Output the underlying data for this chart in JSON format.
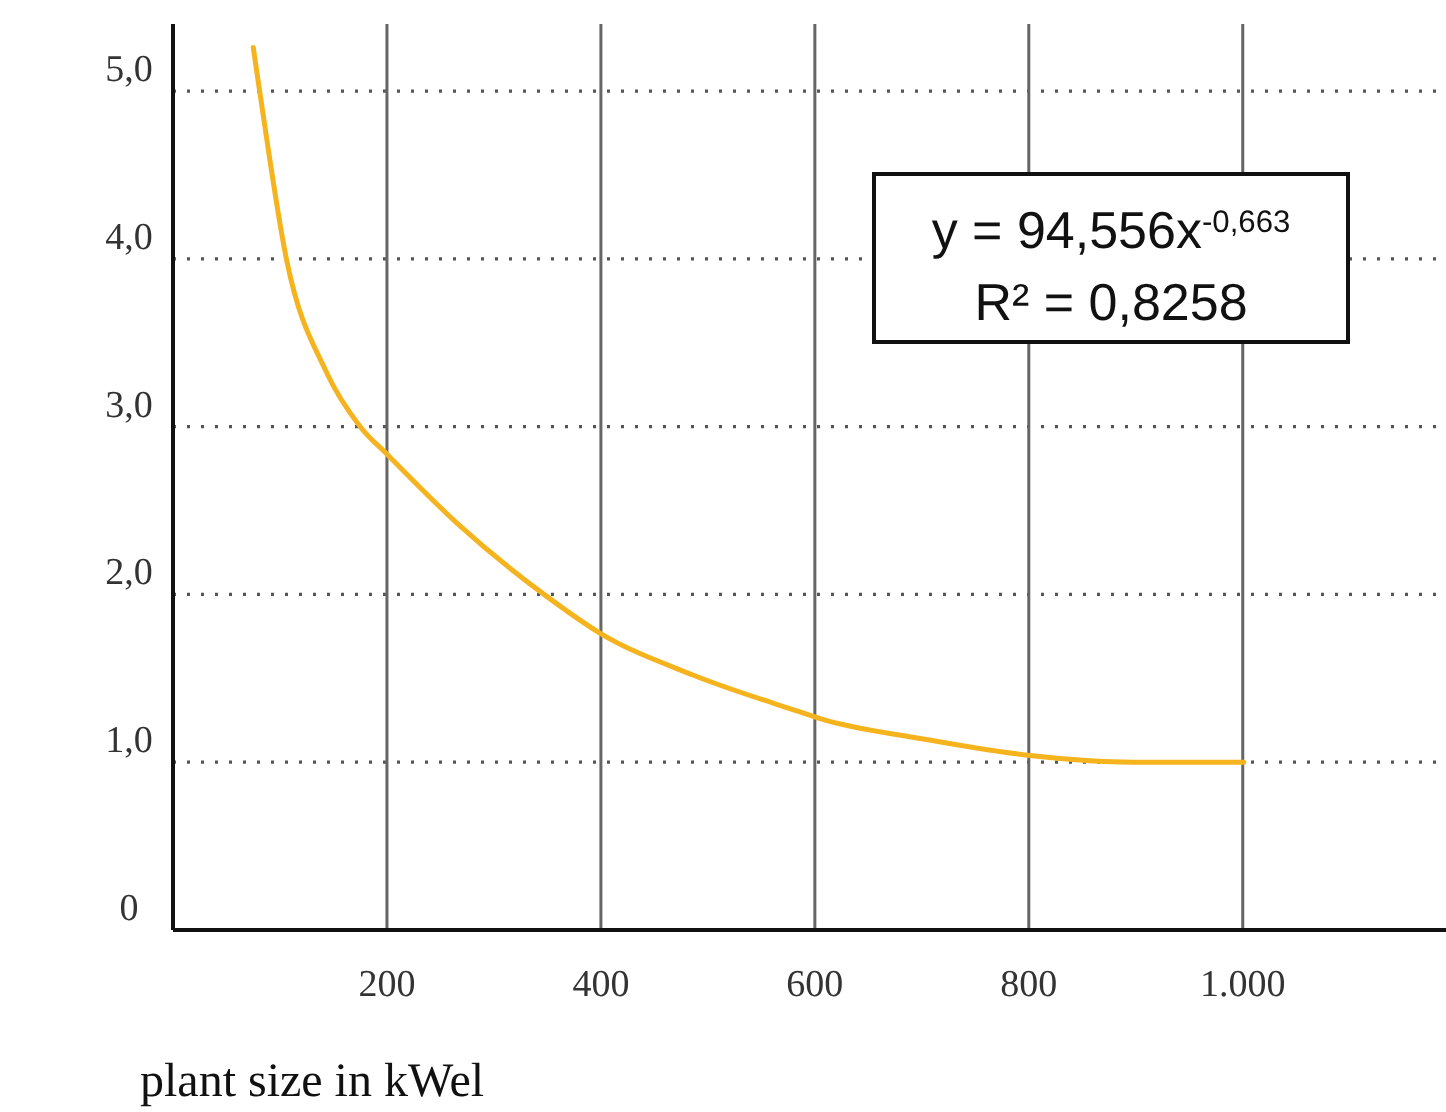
{
  "chart_data": {
    "type": "line",
    "xlabel": "plant size in kWel",
    "annotations": [
      "y = 94,556x$^{-0,663}$",
      "R² = 0,8258"
    ],
    "x": [
      75,
      81,
      106,
      143,
      175,
      201,
      268,
      349,
      399,
      486,
      586,
      605,
      700,
      801,
      898,
      1001
    ],
    "series": [
      {
        "color": "#f5b41e",
        "values": [
          5.26,
          5.0,
          4.0,
          3.33,
          3.0,
          2.83,
          2.41,
          1.99,
          1.77,
          1.52,
          1.3,
          1.26,
          1.14,
          1.04,
          1.0,
          1.0
        ]
      }
    ],
    "xlim": [
      0,
      1190
    ],
    "ylim": [
      0,
      5.4
    ],
    "xticks": [
      200,
      400,
      600,
      800,
      {
        "value": 1000,
        "label": "1.000"
      }
    ],
    "yticks": [
      {
        "value": 0,
        "label": "0"
      },
      {
        "value": 1,
        "label": "1,0"
      },
      {
        "value": 2,
        "label": "2,0"
      },
      {
        "value": 3,
        "label": "3,0"
      },
      {
        "value": 4,
        "label": "4,0"
      },
      {
        "value": 5,
        "label": "5,0"
      }
    ],
    "grid": true,
    "marker": "none",
    "line_style": "solid"
  }
}
